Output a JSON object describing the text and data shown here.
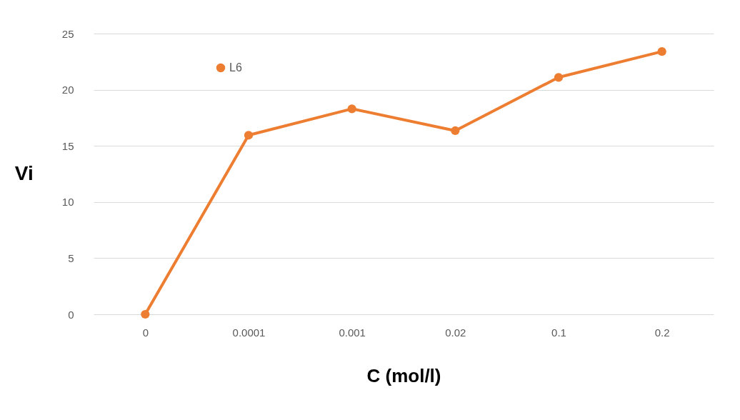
{
  "chart_data": {
    "type": "line",
    "xlabel": "C (mol/l)",
    "ylabel": "Vi",
    "categories": [
      "0",
      "0.0001",
      "0.001",
      "0.02",
      "0.1",
      "0.2"
    ],
    "series": [
      {
        "name": "L6",
        "color": "#ed7d31",
        "values": [
          0,
          15.95,
          18.3,
          16.35,
          21.1,
          23.4
        ]
      }
    ],
    "ylim": [
      0,
      25
    ],
    "yticks": [
      0,
      5,
      10,
      15,
      20,
      25
    ],
    "grid": "y",
    "legend": "top left",
    "marker": "circle",
    "line_style": "solid"
  }
}
